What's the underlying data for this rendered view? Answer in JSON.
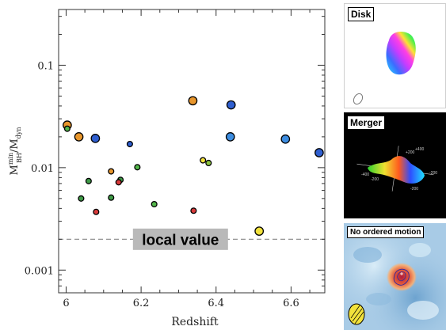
{
  "chart_data": {
    "type": "scatter",
    "xlabel": "Redshift",
    "ylabel": "M_BH^min / M_dyn",
    "xlim": [
      5.98,
      6.69
    ],
    "ylim": [
      0.0006,
      0.35
    ],
    "yscale": "log",
    "x_ticks": [
      "6",
      "6.2",
      "6.4",
      "6.6"
    ],
    "x_tick_values": [
      6.0,
      6.2,
      6.4,
      6.6
    ],
    "y_ticks": [
      "0.001",
      "0.01",
      "0.1"
    ],
    "y_tick_values": [
      0.001,
      0.01,
      0.1
    ],
    "reference_line": {
      "value": 0.002,
      "label": "local value",
      "style": "dashed"
    },
    "points": [
      {
        "x": 6.003,
        "y": 0.026,
        "color": "#e8962c",
        "size": "large"
      },
      {
        "x": 6.003,
        "y": 0.024,
        "color": "#52b64a",
        "size": "small"
      },
      {
        "x": 6.034,
        "y": 0.02,
        "color": "#e8962c",
        "size": "large"
      },
      {
        "x": 6.078,
        "y": 0.0193,
        "color": "#2f5fd0",
        "size": "large"
      },
      {
        "x": 6.17,
        "y": 0.017,
        "color": "#2f5fd0",
        "size": "small"
      },
      {
        "x": 6.338,
        "y": 0.045,
        "color": "#e8962c",
        "size": "large"
      },
      {
        "x": 6.44,
        "y": 0.041,
        "color": "#2f5fd0",
        "size": "large"
      },
      {
        "x": 6.438,
        "y": 0.02,
        "color": "#3d8de0",
        "size": "large"
      },
      {
        "x": 6.585,
        "y": 0.019,
        "color": "#3d8de0",
        "size": "large"
      },
      {
        "x": 6.675,
        "y": 0.014,
        "color": "#2f5fd0",
        "size": "large"
      },
      {
        "x": 6.12,
        "y": 0.0092,
        "color": "#e8962c",
        "size": "small"
      },
      {
        "x": 6.19,
        "y": 0.0101,
        "color": "#52b64a",
        "size": "small"
      },
      {
        "x": 6.06,
        "y": 0.0074,
        "color": "#3e9a46",
        "size": "small"
      },
      {
        "x": 6.145,
        "y": 0.0076,
        "color": "#3e9a46",
        "size": "small"
      },
      {
        "x": 6.14,
        "y": 0.0072,
        "color": "#d83a3a",
        "size": "small"
      },
      {
        "x": 6.04,
        "y": 0.005,
        "color": "#3e9a46",
        "size": "small"
      },
      {
        "x": 6.12,
        "y": 0.0051,
        "color": "#3e9a46",
        "size": "small"
      },
      {
        "x": 6.08,
        "y": 0.0037,
        "color": "#d83a3a",
        "size": "small"
      },
      {
        "x": 6.235,
        "y": 0.0044,
        "color": "#52b64a",
        "size": "small"
      },
      {
        "x": 6.34,
        "y": 0.0038,
        "color": "#d83a3a",
        "size": "small"
      },
      {
        "x": 6.365,
        "y": 0.0118,
        "color": "#f2e23c",
        "size": "small"
      },
      {
        "x": 6.38,
        "y": 0.0111,
        "color": "#8cc63f",
        "size": "small"
      },
      {
        "x": 6.515,
        "y": 0.0024,
        "color": "#f2e23c",
        "size": "large"
      }
    ]
  },
  "panels": {
    "disk": {
      "label": "Disk"
    },
    "merger": {
      "label": "Merger",
      "axis_labels": [
        "+200",
        "+400",
        "-200",
        "-200",
        "-400",
        "-200"
      ]
    },
    "no_motion": {
      "label": "No ordered motion"
    }
  },
  "colors": {
    "dashed_line": "#888888",
    "label_box": "#b9b9b9",
    "noise_background": "#a8cbe6"
  }
}
